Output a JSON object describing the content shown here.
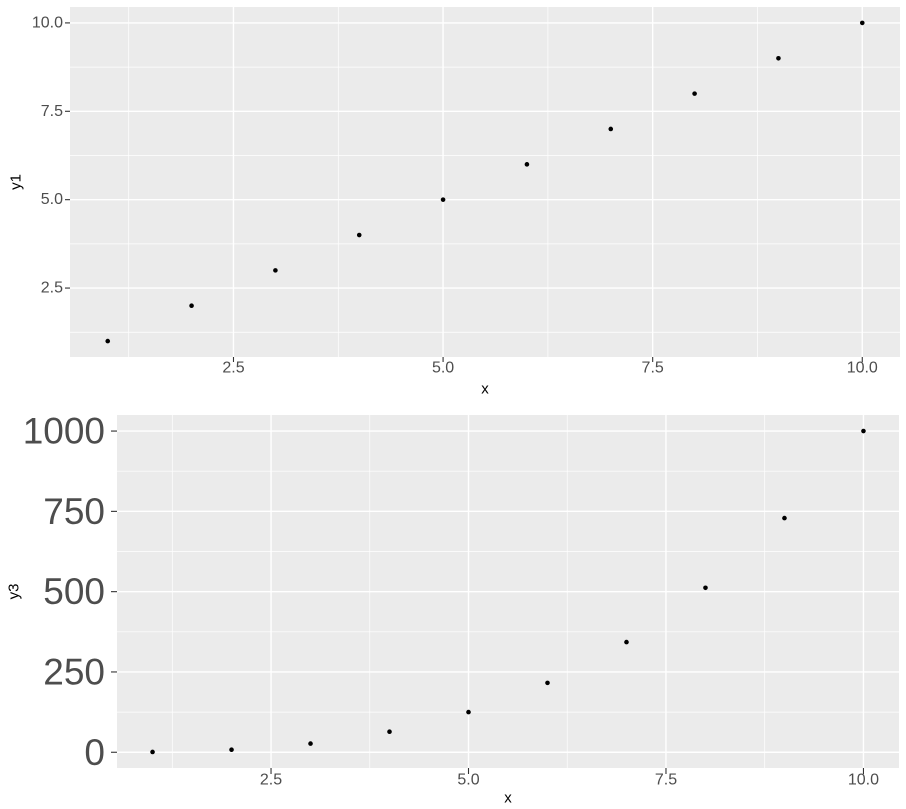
{
  "theme": {
    "background": "#FFFFFF",
    "panel_bg": "#EBEBEB",
    "grid_color": "#FFFFFF",
    "tick_color": "#333333",
    "tick_label_color": "#4D4D4D",
    "axis_title_color": "#000000",
    "point_color": "#000000"
  },
  "chart_data": [
    {
      "type": "scatter",
      "title": "",
      "xlabel": "x",
      "ylabel": "y1",
      "x": [
        1,
        2,
        3,
        4,
        5,
        6,
        7,
        8,
        9,
        10
      ],
      "y": [
        1,
        2,
        3,
        4,
        5,
        6,
        7,
        8,
        9,
        10
      ],
      "xlim": [
        0.55,
        10.45
      ],
      "ylim": [
        0.55,
        10.45
      ],
      "grid": true,
      "legend": "none",
      "x_ticks": {
        "values": [
          2.5,
          5,
          7.5,
          10
        ],
        "labels": [
          "2.5",
          "5.0",
          "7.5",
          "10.0"
        ],
        "minor": [
          1.25,
          3.75,
          6.25,
          8.75
        ]
      },
      "y_ticks": {
        "values": [
          2.5,
          5,
          7.5,
          10
        ],
        "labels": [
          "2.5",
          "5.0",
          "7.5",
          "10.0"
        ],
        "minor": [
          1.25,
          3.75,
          6.25,
          8.75
        ]
      }
    },
    {
      "type": "scatter",
      "title": "",
      "xlabel": "x",
      "ylabel": "y3",
      "x": [
        1,
        2,
        3,
        4,
        5,
        6,
        7,
        8,
        9,
        10
      ],
      "y": [
        1,
        8,
        27,
        64,
        125,
        216,
        343,
        512,
        729,
        1000
      ],
      "xlim": [
        0.55,
        10.45
      ],
      "ylim": [
        -49,
        1050
      ],
      "grid": true,
      "legend": "none",
      "x_ticks": {
        "values": [
          2.5,
          5,
          7.5,
          10
        ],
        "labels": [
          "2.5",
          "5.0",
          "7.5",
          "10.0"
        ],
        "minor": [
          1.25,
          3.75,
          6.25,
          8.75
        ]
      },
      "y_ticks": {
        "values": [
          0,
          250,
          500,
          750,
          1000
        ],
        "labels": [
          "0",
          "250",
          "500",
          "750",
          "1000"
        ],
        "minor": [
          125,
          375,
          625,
          875
        ]
      }
    }
  ]
}
